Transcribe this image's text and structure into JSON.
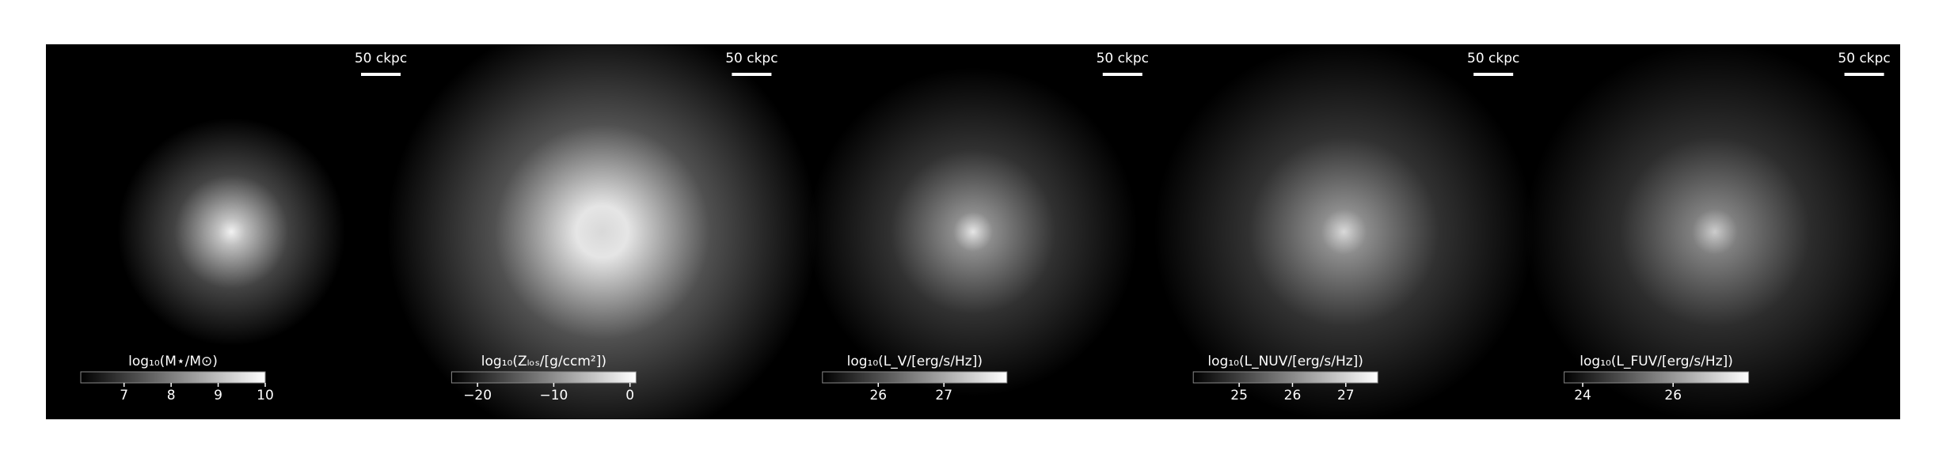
{
  "chart_data": [
    {
      "type": "image",
      "scalebar": "50 ckpc",
      "colorbar_label": "log₁₀(M⋆/M⊙)",
      "clim": [
        6.08,
        10
      ],
      "cticks": [
        7,
        8,
        9,
        10
      ]
    },
    {
      "type": "image",
      "scalebar": "50 ckpc",
      "colorbar_label": "log₁₀(Zₗₒₛ/[g/ccm²])",
      "clim": [
        -23.4,
        0.8
      ],
      "cticks": [
        {
          "value": -20,
          "label": "−20"
        },
        {
          "value": -10,
          "label": "−10"
        },
        0
      ]
    },
    {
      "type": "image",
      "scalebar": "50 ckpc",
      "colorbar_label": "log₁₀(L_V/[erg/s/Hz])",
      "clim": [
        25.15,
        27.96
      ],
      "cticks": [
        26,
        27
      ]
    },
    {
      "type": "image",
      "scalebar": "50 ckpc",
      "colorbar_label": "log₁₀(L_NUV/[erg/s/Hz])",
      "clim": [
        24.14,
        27.6
      ],
      "cticks": [
        25,
        26,
        27
      ]
    },
    {
      "type": "image",
      "scalebar": "50 ckpc",
      "colorbar_label": "log₁₀(L_FUV/[erg/s/Hz])",
      "clim": [
        23.59,
        27.67
      ],
      "cticks": [
        24,
        26
      ]
    }
  ]
}
